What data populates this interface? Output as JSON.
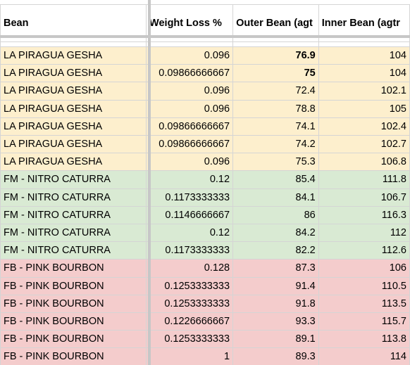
{
  "sheet": {
    "headers": [
      "Bean",
      "Weight Loss %",
      "Outer Bean (agt",
      "Inner Bean (agtr"
    ],
    "groups": {
      "gesha": {
        "name": "LA PIRAGUA GESHA",
        "color": "#fdefcd"
      },
      "nitro": {
        "name": "FM - NITRO CATURRA",
        "color": "#d9ead3"
      },
      "pink": {
        "name": "FB - PINK BOURBON",
        "color": "#f4cccc"
      }
    },
    "rows": [
      {
        "group": "gesha",
        "bean": "LA PIRAGUA GESHA",
        "weight_loss": "0.096",
        "outer": "76.9",
        "inner": "104",
        "outer_bold": true
      },
      {
        "group": "gesha",
        "bean": "LA PIRAGUA GESHA",
        "weight_loss": "0.09866666667",
        "outer": "75",
        "inner": "104",
        "outer_bold": true
      },
      {
        "group": "gesha",
        "bean": "LA PIRAGUA GESHA",
        "weight_loss": "0.096",
        "outer": "72.4",
        "inner": "102.1",
        "outer_bold": false
      },
      {
        "group": "gesha",
        "bean": "LA PIRAGUA GESHA",
        "weight_loss": "0.096",
        "outer": "78.8",
        "inner": "105",
        "outer_bold": false
      },
      {
        "group": "gesha",
        "bean": "LA PIRAGUA GESHA",
        "weight_loss": "0.09866666667",
        "outer": "74.1",
        "inner": "102.4",
        "outer_bold": false
      },
      {
        "group": "gesha",
        "bean": "LA PIRAGUA GESHA",
        "weight_loss": "0.09866666667",
        "outer": "74.2",
        "inner": "102.7",
        "outer_bold": false
      },
      {
        "group": "gesha",
        "bean": "LA PIRAGUA GESHA",
        "weight_loss": "0.096",
        "outer": "75.3",
        "inner": "106.8",
        "outer_bold": false
      },
      {
        "group": "nitro",
        "bean": "FM - NITRO CATURRA",
        "weight_loss": "0.12",
        "outer": "85.4",
        "inner": "111.8",
        "outer_bold": false
      },
      {
        "group": "nitro",
        "bean": "FM - NITRO CATURRA",
        "weight_loss": "0.1173333333",
        "outer": "84.1",
        "inner": "106.7",
        "outer_bold": false
      },
      {
        "group": "nitro",
        "bean": "FM - NITRO CATURRA",
        "weight_loss": "0.1146666667",
        "outer": "86",
        "inner": "116.3",
        "outer_bold": false
      },
      {
        "group": "nitro",
        "bean": "FM - NITRO CATURRA",
        "weight_loss": "0.12",
        "outer": "84.2",
        "inner": "112",
        "outer_bold": false
      },
      {
        "group": "nitro",
        "bean": "FM - NITRO CATURRA",
        "weight_loss": "0.1173333333",
        "outer": "82.2",
        "inner": "112.6",
        "outer_bold": false
      },
      {
        "group": "pink",
        "bean": "FB - PINK BOURBON",
        "weight_loss": "0.128",
        "outer": "87.3",
        "inner": "106",
        "outer_bold": false
      },
      {
        "group": "pink",
        "bean": "FB - PINK BOURBON",
        "weight_loss": "0.1253333333",
        "outer": "91.4",
        "inner": "110.5",
        "outer_bold": false
      },
      {
        "group": "pink",
        "bean": "FB - PINK BOURBON",
        "weight_loss": "0.1253333333",
        "outer": "91.8",
        "inner": "113.5",
        "outer_bold": false
      },
      {
        "group": "pink",
        "bean": "FB - PINK BOURBON",
        "weight_loss": "0.1226666667",
        "outer": "93.3",
        "inner": "115.7",
        "outer_bold": false
      },
      {
        "group": "pink",
        "bean": "FB - PINK BOURBON",
        "weight_loss": "0.1253333333",
        "outer": "89.1",
        "inner": "113.8",
        "outer_bold": false
      },
      {
        "group": "pink",
        "bean": "FB - PINK BOURBON",
        "weight_loss": "1",
        "outer": "89.3",
        "inner": "114",
        "outer_bold": false
      }
    ]
  }
}
